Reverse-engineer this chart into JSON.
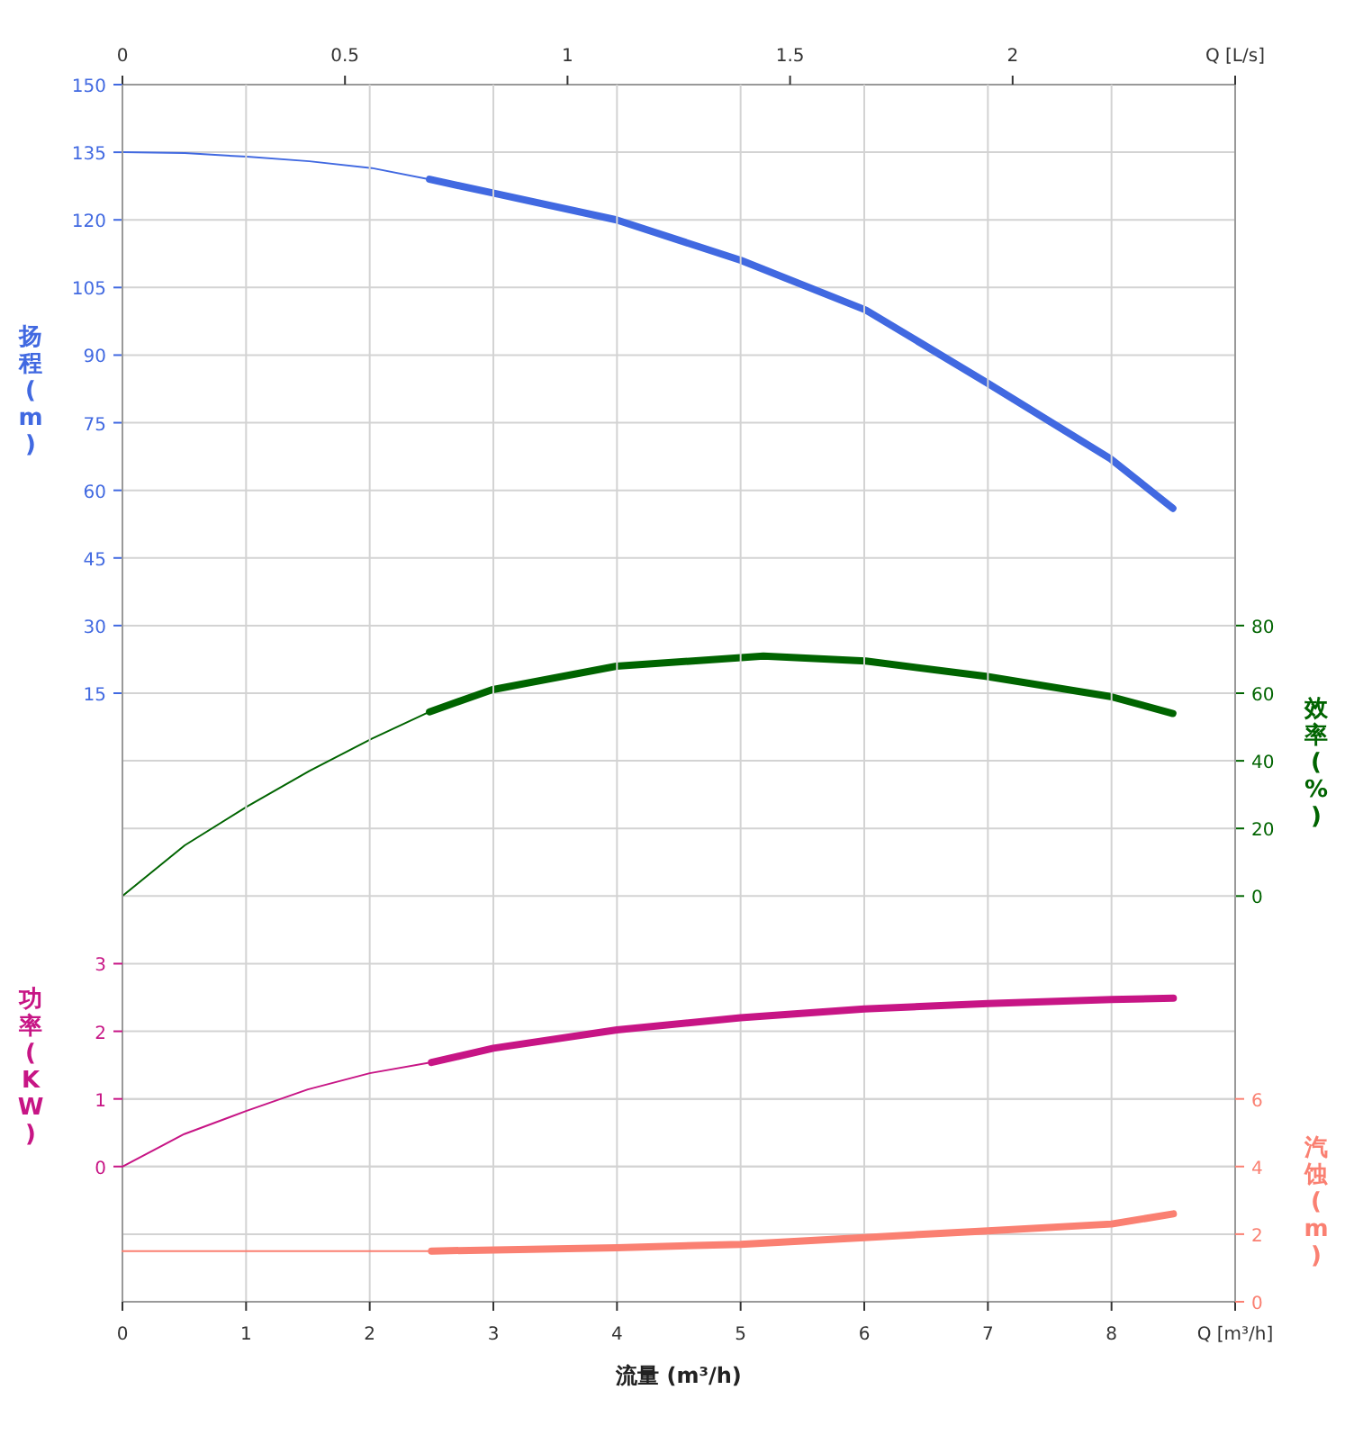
{
  "chart_data": [
    {
      "type": "line",
      "ylabel": "扬程 (m)",
      "y2label": "效率 (%)",
      "xlim": [
        0,
        2.5
      ],
      "xticks": [
        0,
        0.5,
        1,
        1.5,
        2,
        {
          "value": 2.5,
          "label": "Q [L/s]"
        }
      ],
      "ylim": [
        -120,
        150
      ],
      "yticks": [
        15,
        30,
        45,
        60,
        75,
        90,
        105,
        120,
        135,
        150
      ],
      "y2lim": [
        -120,
        240
      ],
      "y2ticks": [
        0,
        20,
        40,
        60,
        80
      ],
      "grid": "y",
      "series": [
        {
          "color": "#4169e1",
          "x": [
            0,
            0.14,
            0.28,
            0.42,
            0.56,
            0.69
          ],
          "values": [
            135,
            134.8,
            134,
            133,
            131.5,
            129
          ]
        },
        {
          "color": "#4169e1",
          "x": [
            0.69,
            0.83,
            1.11,
            1.39,
            1.67,
            1.94,
            2.22,
            2.36
          ],
          "values": [
            129,
            126,
            120,
            111,
            100,
            84,
            67,
            56
          ]
        },
        {
          "axis": "y2",
          "color": "#006400",
          "x": [
            0,
            0.14,
            0.28,
            0.42,
            0.56,
            0.69
          ],
          "values": [
            0,
            15,
            26.5,
            37,
            46.5,
            54.5
          ]
        },
        {
          "axis": "y2",
          "color": "#006400",
          "x": [
            0.69,
            0.83,
            1.11,
            1.39,
            1.44,
            1.67,
            1.94,
            2.22,
            2.36
          ],
          "values": [
            54.5,
            61,
            68,
            70.5,
            71,
            69.5,
            65,
            59,
            54
          ]
        }
      ]
    },
    {
      "type": "line",
      "xlabel": "流量 (m³/h)",
      "ylabel": "功率 (KW)",
      "y2label": "汽蚀 (m)",
      "xlim": [
        0,
        9
      ],
      "xticks": [
        0,
        1,
        2,
        3,
        4,
        5,
        6,
        7,
        8,
        {
          "value": 9,
          "label": "Q [m³/h]"
        }
      ],
      "ylim": [
        -2,
        16
      ],
      "yticks": [
        0,
        1,
        2,
        3
      ],
      "y2lim": [
        0,
        36
      ],
      "y2ticks": [
        0,
        2,
        4,
        6
      ],
      "grid": true,
      "series": [
        {
          "color": "#c71585",
          "x": [
            0,
            0.5,
            1,
            1.5,
            2,
            2.5
          ],
          "values": [
            0,
            0.48,
            0.82,
            1.14,
            1.38,
            1.54
          ]
        },
        {
          "color": "#c71585",
          "x": [
            2.5,
            3,
            4,
            5,
            6,
            7,
            8,
            8.5
          ],
          "values": [
            1.54,
            1.75,
            2.02,
            2.2,
            2.33,
            2.41,
            2.47,
            2.49
          ]
        },
        {
          "axis": "y2",
          "color": "#fa8072",
          "x": [
            0,
            2.5
          ],
          "values": [
            1.5,
            1.5
          ]
        },
        {
          "axis": "y2",
          "color": "#fa8072",
          "x": [
            2.5,
            4,
            5,
            6,
            7,
            8,
            8.5
          ],
          "values": [
            1.5,
            1.6,
            1.7,
            1.9,
            2.1,
            2.3,
            2.6
          ]
        }
      ]
    }
  ]
}
